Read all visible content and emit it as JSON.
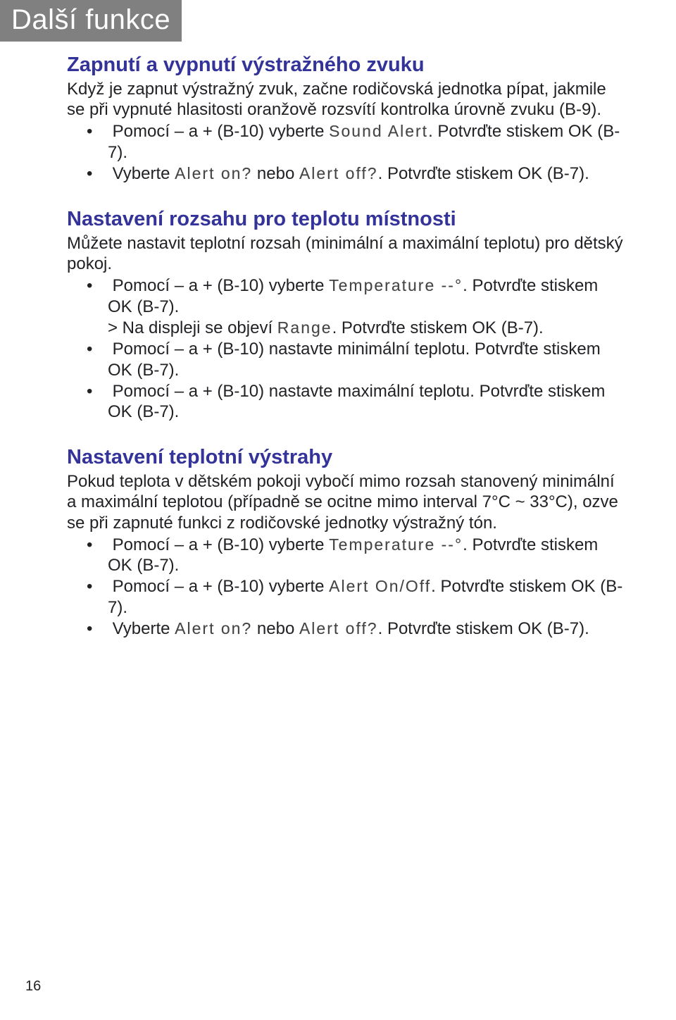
{
  "colors": {
    "header_bg": "#808080",
    "header_fg": "#ffffff",
    "title_fg": "#333399",
    "body_fg": "#222226",
    "page_bg": "#ffffff"
  },
  "header": "Další funkce",
  "page_number": "16",
  "sections": [
    {
      "title": "Zapnutí a vypnutí výstražného zvuku",
      "intro": "Když je zapnut výstražný zvuk, začne rodičovská jednotka pípat, jakmile se při vypnuté hlasitosti oranžově rozsvítí kontrolka úrovně zvuku (B-9).",
      "bullets": [
        {
          "pre": "Pomocí – a + (B-10) vyberte ",
          "code": "Sound Alert",
          "post": ". Potvrďte stiskem OK (B-7)."
        },
        {
          "pre": "Vyberte ",
          "code": "Alert on?",
          "mid": " nebo ",
          "code2": "Alert off?",
          "post": ". Potvrďte stiskem OK (B-7)."
        }
      ]
    },
    {
      "title": "Nastavení rozsahu pro teplotu místnosti",
      "intro": "Můžete nastavit teplotní rozsah (minimální a maximální teplotu) pro dětský pokoj.",
      "bullets": [
        {
          "pre": "Pomocí – a + (B-10) vyberte ",
          "code": "Temperature --°",
          "post": ". Potvrďte stiskem OK (B-7).",
          "sub": {
            "pre": "> Na displeji se objeví ",
            "code": "Range",
            "post": ". Potvrďte stiskem OK (B-7)."
          }
        },
        {
          "pre": "Pomocí – a + (B-10) nastavte minimální teplotu. Potvrďte stiskem OK (B-7)."
        },
        {
          "pre": "Pomocí – a + (B-10) nastavte maximální teplotu. Potvrďte stiskem OK (B-7)."
        }
      ]
    },
    {
      "title": "Nastavení teplotní výstrahy",
      "intro": "Pokud teplota v dětském pokoji vybočí mimo rozsah stanovený minimální a maximální teplotou (případně se ocitne mimo interval 7°C ~ 33°C), ozve se při zapnuté funkci z rodičovské jednotky výstražný tón.",
      "bullets": [
        {
          "pre": "Pomocí – a + (B-10) vyberte ",
          "code": "Temperature --°",
          "post": ". Potvrďte stiskem OK (B-7)."
        },
        {
          "pre": "Pomocí – a + (B-10) vyberte ",
          "code": "Alert On/Off",
          "post": ". Potvrďte stiskem OK (B-7)."
        },
        {
          "pre": "Vyberte ",
          "code": "Alert on?",
          "mid": " nebo ",
          "code2": "Alert off?",
          "post": ". Potvrďte stiskem OK (B-7)."
        }
      ]
    }
  ]
}
